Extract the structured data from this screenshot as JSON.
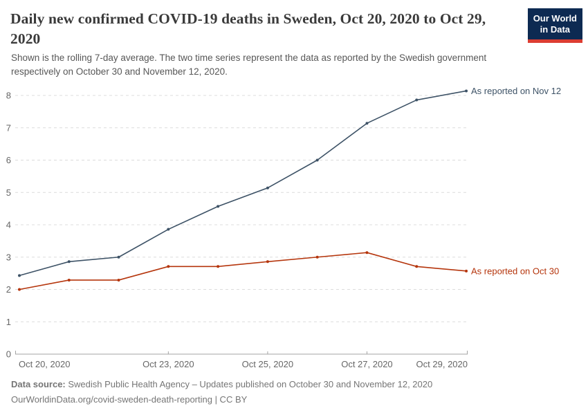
{
  "header": {
    "title": "Daily new confirmed COVID-19 deaths in Sweden, Oct 20, 2020 to Oct 29, 2020",
    "subtitle": "Shown is the rolling 7-day average. The two time series represent the data as reported by the Swedish government respectively on October 30 and November 12, 2020.",
    "logo": {
      "line1": "Our World",
      "line2": "in Data",
      "bg_color": "#0d2a52",
      "bar_color": "#dc3d32"
    }
  },
  "chart_data": {
    "type": "line",
    "title": "Daily new confirmed COVID-19 deaths in Sweden, Oct 20, 2020 to Oct 29, 2020",
    "x": [
      "Oct 20, 2020",
      "Oct 21, 2020",
      "Oct 22, 2020",
      "Oct 23, 2020",
      "Oct 24, 2020",
      "Oct 25, 2020",
      "Oct 26, 2020",
      "Oct 27, 2020",
      "Oct 28, 2020",
      "Oct 29, 2020"
    ],
    "x_tick_labels": [
      "Oct 20, 2020",
      "Oct 23, 2020",
      "Oct 25, 2020",
      "Oct 27, 2020",
      "Oct 29, 2020"
    ],
    "x_tick_indices": [
      0,
      3,
      5,
      7,
      9
    ],
    "series": [
      {
        "name": "As reported on Oct 30",
        "color": "#b5350c",
        "values": [
          2.0,
          2.29,
          2.29,
          2.71,
          2.71,
          2.86,
          3.0,
          3.14,
          2.71,
          2.57
        ]
      },
      {
        "name": "As reported on Nov 12",
        "color": "#3d5266",
        "values": [
          2.43,
          2.86,
          3.0,
          3.86,
          4.57,
          5.14,
          6.0,
          7.14,
          7.86,
          8.14
        ]
      }
    ],
    "xlabel": "",
    "ylabel": "",
    "ylim": [
      0,
      8
    ],
    "yticks": [
      0,
      1,
      2,
      3,
      4,
      5,
      6,
      7,
      8
    ],
    "grid": "horizontal-dashed",
    "legend_position": "end-of-line-labels",
    "colors": {
      "gridline": "#dcdcdc",
      "axis": "#a3a3a3",
      "tick_text": "#666666"
    }
  },
  "footer": {
    "source_label": "Data source:",
    "source_text": "Swedish Public Health Agency – Updates published on October 30 and November 12, 2020",
    "license_line": "OurWorldinData.org/covid-sweden-death-reporting | CC BY"
  }
}
